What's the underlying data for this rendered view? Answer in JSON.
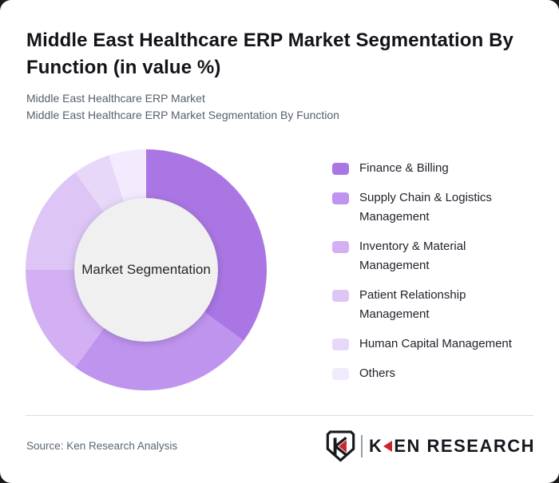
{
  "page": {
    "title": "Middle East Healthcare ERP Market Segmentation By Function (in value %)",
    "subtitle_line1": "Middle East Healthcare ERP Market",
    "subtitle_line2": "Middle East Healthcare ERP Market Segmentation By Function",
    "background_color": "#1a1a1c",
    "card_color": "#ffffff"
  },
  "chart_data": {
    "type": "pie",
    "variant": "donut",
    "title": "Middle East Healthcare ERP Market Segmentation By Function (in value %)",
    "center_label": "Market Segmentation",
    "unit": "% of value (labels not shown; values estimated from arc angles)",
    "categories": [
      "Finance & Billing",
      "Supply Chain & Logistics Management",
      "Inventory & Material Management",
      "Patient Relationship Management",
      "Human Capital Management",
      "Others"
    ],
    "values": [
      35,
      25,
      15,
      15,
      5,
      5
    ],
    "colors": [
      "#aa76e3",
      "#bf94ee",
      "#d2b0f3",
      "#ddc6f6",
      "#e7d8fa",
      "#f2ebfd"
    ],
    "start_angle_deg": 0,
    "direction": "clockwise",
    "legend_position": "right",
    "inner_circle_color": "#f0f0f1",
    "outer_radius_px": 151,
    "inner_radius_px": 90
  },
  "footer": {
    "source": "Source: Ken Research Analysis",
    "brand": {
      "emblem_letter": "K",
      "wordmark_prefix": "K",
      "wordmark_suffix": "EN RESEARCH",
      "accent_color": "#c9252c"
    }
  }
}
